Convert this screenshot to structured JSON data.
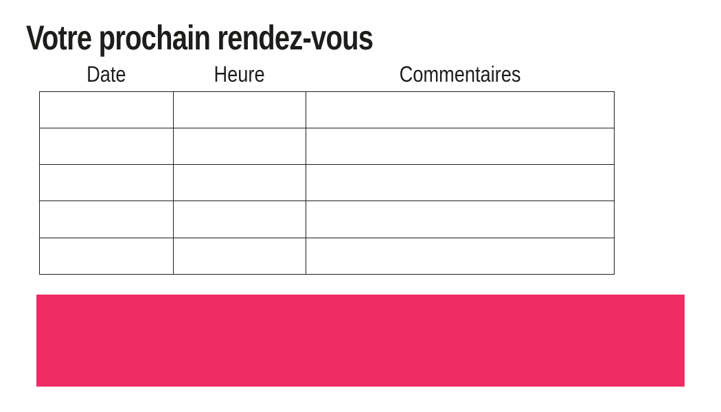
{
  "page": {
    "title": "Votre prochain rendez-vous"
  },
  "table": {
    "headers": [
      {
        "id": "date",
        "label": "Date"
      },
      {
        "id": "heure",
        "label": "Heure"
      },
      {
        "id": "commentaires",
        "label": "Commentaires"
      }
    ],
    "rows": [
      {
        "date": "",
        "heure": "",
        "commentaires": ""
      },
      {
        "date": "",
        "heure": "",
        "commentaires": ""
      },
      {
        "date": "",
        "heure": "",
        "commentaires": ""
      },
      {
        "date": "",
        "heure": "",
        "commentaires": ""
      },
      {
        "date": "",
        "heure": "",
        "commentaires": ""
      }
    ]
  },
  "footer_band": {
    "text": ""
  },
  "colors": {
    "accent_pink": "#ED2D64",
    "ink": "#1D1D1B",
    "table_border": "#1D1D1B"
  }
}
